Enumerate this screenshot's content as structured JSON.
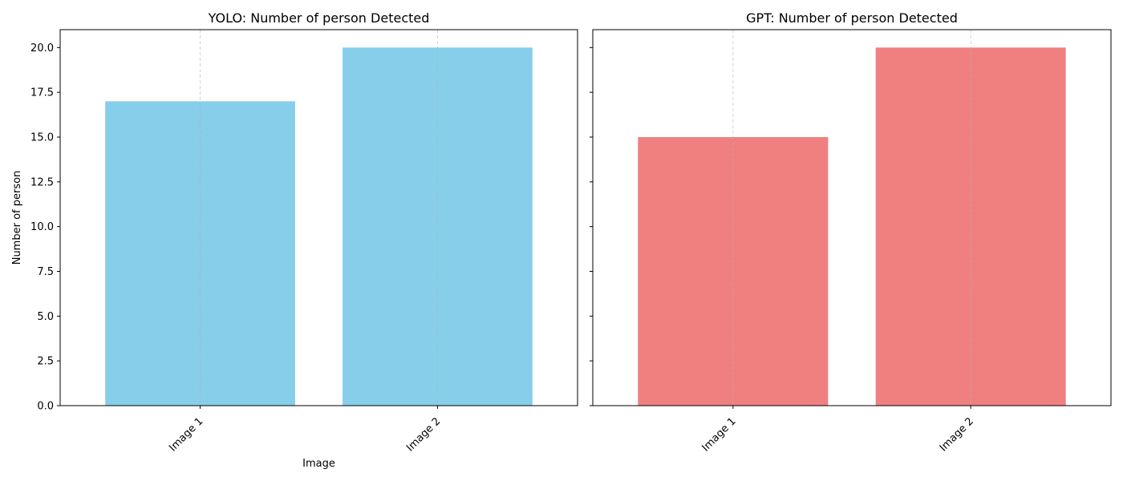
{
  "chart_data": [
    {
      "type": "bar",
      "title": "YOLO: Number of person Detected",
      "xlabel": "Image",
      "ylabel": "Number of person",
      "categories": [
        "Image 1",
        "Image 2"
      ],
      "values": [
        17,
        20
      ],
      "ylim": [
        0,
        21
      ],
      "yticks": [
        "0.0",
        "2.5",
        "5.0",
        "7.5",
        "10.0",
        "12.5",
        "15.0",
        "17.5",
        "20.0"
      ],
      "color": "#87CEEB",
      "grid": "x-dashed",
      "xtick_rotation": 45
    },
    {
      "type": "bar",
      "title": "GPT: Number of person Detected",
      "xlabel": "",
      "ylabel": "",
      "categories": [
        "Image 1",
        "Image 2"
      ],
      "values": [
        15,
        20
      ],
      "ylim": [
        0,
        21
      ],
      "yticks": [],
      "color": "#F08080",
      "grid": "x-dashed",
      "xtick_rotation": 45
    }
  ]
}
